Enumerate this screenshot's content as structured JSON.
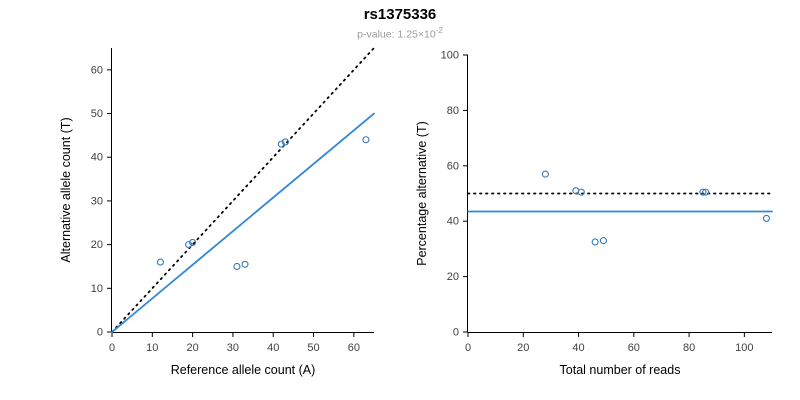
{
  "title": "rs1375336",
  "p_value": {
    "base": "p-value: 1.25×10",
    "exponent": "-2"
  },
  "colors": {
    "point": "#3579b8",
    "regression_line": "#2e86de",
    "identity_line": "#000000",
    "axis": "#000000",
    "tick_label": "#404040",
    "axis_label": "#000000"
  },
  "chart_data": [
    {
      "type": "scatter",
      "name": "allele-counts",
      "xlabel": "Reference allele count (A)",
      "ylabel": "Alternative allele count (T)",
      "xlim": [
        0,
        65
      ],
      "ylim": [
        0,
        65
      ],
      "xticks": [
        0,
        10,
        20,
        30,
        40,
        50,
        60
      ],
      "yticks": [
        0,
        10,
        20,
        30,
        40,
        50,
        60
      ],
      "grid": false,
      "points": [
        [
          12,
          16
        ],
        [
          19,
          20
        ],
        [
          20,
          20.5
        ],
        [
          31,
          15
        ],
        [
          33,
          15.5
        ],
        [
          42,
          43
        ],
        [
          43,
          43.5
        ],
        [
          63,
          44
        ]
      ],
      "lines": [
        {
          "name": "identity-line",
          "style": "dotted",
          "color": "#000000",
          "from": [
            0,
            0
          ],
          "to": [
            65,
            65
          ]
        },
        {
          "name": "regression-line",
          "style": "solid",
          "color": "#2e86de",
          "from": [
            0,
            0
          ],
          "to": [
            65,
            50
          ]
        }
      ]
    },
    {
      "type": "scatter",
      "name": "percentage-alternative",
      "xlabel": "Total number of reads",
      "ylabel": "Percentage alternative (T)",
      "xlim": [
        0,
        110
      ],
      "ylim": [
        0,
        100
      ],
      "xticks": [
        0,
        20,
        40,
        60,
        80,
        100
      ],
      "yticks": [
        0,
        20,
        40,
        60,
        80,
        100
      ],
      "grid": false,
      "points": [
        [
          28,
          57
        ],
        [
          39,
          51
        ],
        [
          41,
          50.5
        ],
        [
          46,
          32.5
        ],
        [
          49,
          33
        ],
        [
          85,
          50.5
        ],
        [
          86,
          50.5
        ],
        [
          108,
          41
        ]
      ],
      "lines": [
        {
          "name": "fifty-percent-line",
          "style": "dotted",
          "color": "#000000",
          "from": [
            0,
            50
          ],
          "to": [
            110,
            50
          ]
        },
        {
          "name": "mean-percentage-line",
          "style": "solid",
          "color": "#2e86de",
          "from": [
            0,
            43.5
          ],
          "to": [
            110,
            43.5
          ]
        }
      ]
    }
  ]
}
